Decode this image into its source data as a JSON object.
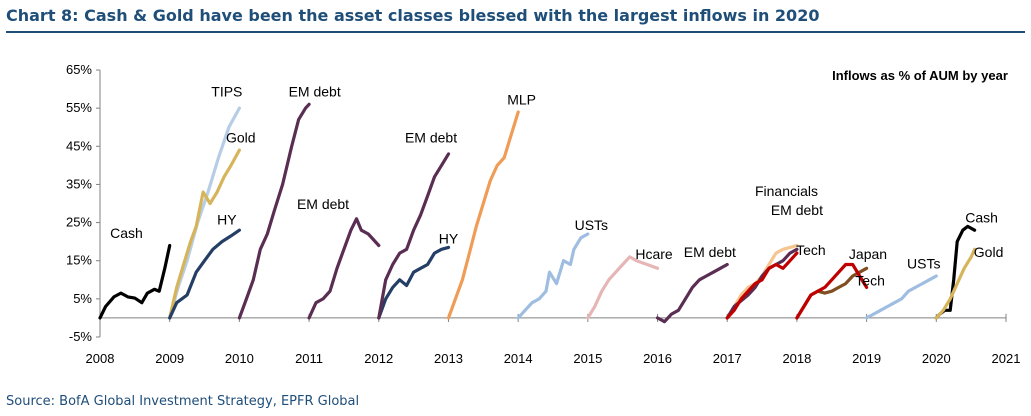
{
  "title": "Chart 8: Cash & Gold have been the asset classes blessed with the largest inflows in 2020",
  "source": "Source: BofA Global Investment Strategy, EPFR Global",
  "chart_data": {
    "type": "line",
    "title": "Chart 8: Cash & Gold have been the asset classes blessed with the largest inflows in 2020",
    "annotation": "Inflows as % of AUM by year",
    "xlim": [
      2008,
      2021
    ],
    "ylim": [
      -5,
      65
    ],
    "x_ticks": [
      "2008",
      "2009",
      "2010",
      "2011",
      "2012",
      "2013",
      "2014",
      "2015",
      "2016",
      "2017",
      "2018",
      "2019",
      "2020",
      "2021"
    ],
    "y_ticks": [
      "65%",
      "55%",
      "45%",
      "35%",
      "25%",
      "15%",
      "5%",
      "-5%"
    ],
    "grid": false,
    "legend": "none (series labelled directly)",
    "series": [
      {
        "name": "Cash",
        "color": "#000000",
        "points": [
          [
            2008.0,
            0
          ],
          [
            2008.08,
            3
          ],
          [
            2008.2,
            5.5
          ],
          [
            2008.3,
            6.5
          ],
          [
            2008.4,
            5.5
          ],
          [
            2008.5,
            5.2
          ],
          [
            2008.6,
            4
          ],
          [
            2008.68,
            6.5
          ],
          [
            2008.78,
            7.5
          ],
          [
            2008.85,
            7
          ],
          [
            2008.93,
            13
          ],
          [
            2009.0,
            19
          ]
        ]
      },
      {
        "name": "TIPS",
        "color": "#b7cde6",
        "points": [
          [
            2009.0,
            0
          ],
          [
            2009.12,
            8
          ],
          [
            2009.25,
            15
          ],
          [
            2009.4,
            25
          ],
          [
            2009.55,
            33
          ],
          [
            2009.7,
            42
          ],
          [
            2009.85,
            50
          ],
          [
            2010.0,
            55
          ]
        ]
      },
      {
        "name": "Gold",
        "color": "#d6b45a",
        "points": [
          [
            2009.0,
            0
          ],
          [
            2009.1,
            8
          ],
          [
            2009.2,
            14
          ],
          [
            2009.3,
            20
          ],
          [
            2009.38,
            24
          ],
          [
            2009.48,
            33
          ],
          [
            2009.58,
            30
          ],
          [
            2009.68,
            33
          ],
          [
            2009.78,
            37
          ],
          [
            2009.88,
            40
          ],
          [
            2010.0,
            44
          ]
        ]
      },
      {
        "name": "HY",
        "color": "#243e66",
        "points": [
          [
            2009.0,
            0
          ],
          [
            2009.1,
            4
          ],
          [
            2009.25,
            6
          ],
          [
            2009.38,
            12
          ],
          [
            2009.5,
            15
          ],
          [
            2009.62,
            18
          ],
          [
            2009.75,
            20
          ],
          [
            2009.88,
            21.5
          ],
          [
            2010.0,
            23
          ]
        ]
      },
      {
        "name": "EM debt",
        "color": "#5a2d52",
        "points": [
          [
            2010.0,
            0
          ],
          [
            2010.1,
            5
          ],
          [
            2010.2,
            10
          ],
          [
            2010.3,
            18
          ],
          [
            2010.4,
            22
          ],
          [
            2010.5,
            28
          ],
          [
            2010.62,
            35
          ],
          [
            2010.75,
            45
          ],
          [
            2010.85,
            52
          ],
          [
            2010.95,
            55
          ],
          [
            2011.0,
            56
          ]
        ]
      },
      {
        "name": "EM debt",
        "color": "#5a2d52",
        "points": [
          [
            2011.0,
            0
          ],
          [
            2011.1,
            4
          ],
          [
            2011.2,
            5
          ],
          [
            2011.3,
            7
          ],
          [
            2011.4,
            13
          ],
          [
            2011.5,
            18
          ],
          [
            2011.6,
            23
          ],
          [
            2011.68,
            26
          ],
          [
            2011.75,
            23
          ],
          [
            2011.85,
            22
          ],
          [
            2012.0,
            19
          ]
        ]
      },
      {
        "name": "HY",
        "color": "#243e66",
        "points": [
          [
            2012.0,
            0
          ],
          [
            2012.1,
            5
          ],
          [
            2012.2,
            8
          ],
          [
            2012.3,
            10
          ],
          [
            2012.4,
            8.5
          ],
          [
            2012.5,
            12
          ],
          [
            2012.6,
            13
          ],
          [
            2012.7,
            14
          ],
          [
            2012.8,
            17
          ],
          [
            2012.9,
            18
          ],
          [
            2013.0,
            18.5
          ]
        ]
      },
      {
        "name": "EM debt",
        "color": "#5a2d52",
        "points": [
          [
            2012.0,
            0
          ],
          [
            2012.1,
            10
          ],
          [
            2012.2,
            14
          ],
          [
            2012.3,
            17
          ],
          [
            2012.4,
            18
          ],
          [
            2012.5,
            23
          ],
          [
            2012.6,
            27
          ],
          [
            2012.7,
            32
          ],
          [
            2012.8,
            37
          ],
          [
            2012.9,
            40
          ],
          [
            2013.0,
            43
          ]
        ]
      },
      {
        "name": "MLP",
        "color": "#ef9c57",
        "points": [
          [
            2013.0,
            0
          ],
          [
            2013.1,
            5
          ],
          [
            2013.2,
            10
          ],
          [
            2013.3,
            17
          ],
          [
            2013.4,
            24
          ],
          [
            2013.5,
            30
          ],
          [
            2013.6,
            36
          ],
          [
            2013.7,
            40
          ],
          [
            2013.8,
            42
          ],
          [
            2013.9,
            48
          ],
          [
            2014.0,
            54
          ]
        ]
      },
      {
        "name": "USTs",
        "color": "#9fbde0",
        "points": [
          [
            2014.0,
            0
          ],
          [
            2014.1,
            2
          ],
          [
            2014.2,
            4
          ],
          [
            2014.3,
            5
          ],
          [
            2014.4,
            7
          ],
          [
            2014.45,
            12
          ],
          [
            2014.55,
            9
          ],
          [
            2014.65,
            15
          ],
          [
            2014.75,
            14
          ],
          [
            2014.8,
            18
          ],
          [
            2014.9,
            21
          ],
          [
            2015.0,
            22
          ]
        ]
      },
      {
        "name": "Hcare",
        "color": "#e6b6b6",
        "points": [
          [
            2015.0,
            0
          ],
          [
            2015.1,
            3
          ],
          [
            2015.2,
            7
          ],
          [
            2015.3,
            10
          ],
          [
            2015.4,
            12
          ],
          [
            2015.5,
            14
          ],
          [
            2015.6,
            16
          ],
          [
            2015.7,
            15
          ],
          [
            2015.85,
            14
          ],
          [
            2016.0,
            13
          ]
        ]
      },
      {
        "name": "EM debt",
        "color": "#5a2d52",
        "points": [
          [
            2016.0,
            0
          ],
          [
            2016.1,
            -1
          ],
          [
            2016.2,
            1
          ],
          [
            2016.3,
            2
          ],
          [
            2016.4,
            5
          ],
          [
            2016.5,
            8
          ],
          [
            2016.6,
            10
          ],
          [
            2016.7,
            11
          ],
          [
            2016.8,
            12
          ],
          [
            2016.9,
            13
          ],
          [
            2017.0,
            14
          ]
        ]
      },
      {
        "name": "Financials",
        "color": "#f7c58f",
        "points": [
          [
            2017.0,
            0
          ],
          [
            2017.1,
            3
          ],
          [
            2017.2,
            6
          ],
          [
            2017.3,
            8
          ],
          [
            2017.4,
            9
          ],
          [
            2017.5,
            11
          ],
          [
            2017.6,
            14
          ],
          [
            2017.7,
            17
          ],
          [
            2017.8,
            18
          ],
          [
            2017.9,
            18.5
          ],
          [
            2018.0,
            19
          ]
        ]
      },
      {
        "name": "EM debt",
        "color": "#5a2d52",
        "points": [
          [
            2017.0,
            0
          ],
          [
            2017.1,
            3
          ],
          [
            2017.2,
            4.5
          ],
          [
            2017.3,
            6
          ],
          [
            2017.4,
            8
          ],
          [
            2017.5,
            11
          ],
          [
            2017.6,
            13
          ],
          [
            2017.7,
            14
          ],
          [
            2017.8,
            15
          ],
          [
            2017.9,
            17
          ],
          [
            2018.0,
            18
          ]
        ]
      },
      {
        "name": "Tech",
        "color": "#c00000",
        "points": [
          [
            2017.0,
            0
          ],
          [
            2017.1,
            2
          ],
          [
            2017.2,
            5
          ],
          [
            2017.3,
            7
          ],
          [
            2017.4,
            9
          ],
          [
            2017.5,
            10
          ],
          [
            2017.6,
            13
          ],
          [
            2017.7,
            14
          ],
          [
            2017.8,
            13
          ],
          [
            2017.9,
            15
          ],
          [
            2018.0,
            17
          ]
        ]
      },
      {
        "name": "Japan",
        "color": "#7f4f21",
        "points": [
          [
            2018.0,
            0
          ],
          [
            2018.1,
            3
          ],
          [
            2018.2,
            6
          ],
          [
            2018.3,
            7
          ],
          [
            2018.4,
            6.5
          ],
          [
            2018.5,
            7
          ],
          [
            2018.6,
            8
          ],
          [
            2018.7,
            9
          ],
          [
            2018.8,
            11
          ],
          [
            2018.9,
            12
          ],
          [
            2019.0,
            13
          ]
        ]
      },
      {
        "name": "Tech",
        "color": "#c00000",
        "points": [
          [
            2018.0,
            0
          ],
          [
            2018.1,
            3
          ],
          [
            2018.2,
            6
          ],
          [
            2018.3,
            7
          ],
          [
            2018.4,
            8
          ],
          [
            2018.5,
            10
          ],
          [
            2018.6,
            12
          ],
          [
            2018.7,
            14
          ],
          [
            2018.8,
            14
          ],
          [
            2018.9,
            11
          ],
          [
            2019.0,
            8
          ]
        ]
      },
      {
        "name": "USTs",
        "color": "#9fbde0",
        "points": [
          [
            2019.0,
            0
          ],
          [
            2019.1,
            1
          ],
          [
            2019.2,
            2
          ],
          [
            2019.3,
            3
          ],
          [
            2019.4,
            4
          ],
          [
            2019.5,
            5
          ],
          [
            2019.6,
            7
          ],
          [
            2019.7,
            8
          ],
          [
            2019.8,
            9
          ],
          [
            2019.9,
            10
          ],
          [
            2020.0,
            11
          ]
        ]
      },
      {
        "name": "Cash",
        "color": "#000000",
        "points": [
          [
            2020.0,
            0
          ],
          [
            2020.05,
            1
          ],
          [
            2020.12,
            2
          ],
          [
            2020.2,
            2
          ],
          [
            2020.25,
            10
          ],
          [
            2020.3,
            20
          ],
          [
            2020.38,
            23
          ],
          [
            2020.45,
            24
          ],
          [
            2020.55,
            23
          ]
        ]
      },
      {
        "name": "Gold",
        "color": "#d6b45a",
        "points": [
          [
            2020.0,
            0
          ],
          [
            2020.1,
            2
          ],
          [
            2020.2,
            5
          ],
          [
            2020.3,
            9
          ],
          [
            2020.4,
            13
          ],
          [
            2020.5,
            16
          ],
          [
            2020.55,
            18
          ]
        ]
      }
    ],
    "labels": [
      {
        "text": "Cash",
        "x": 2008.38,
        "y": 21
      },
      {
        "text": "TIPS",
        "x": 2009.82,
        "y": 58
      },
      {
        "text": "Gold",
        "x": 2010.02,
        "y": 46
      },
      {
        "text": "HY",
        "x": 2009.82,
        "y": 24.5
      },
      {
        "text": "EM debt",
        "x": 2011.08,
        "y": 58
      },
      {
        "text": "EM debt",
        "x": 2011.2,
        "y": 28.5
      },
      {
        "text": "EM debt",
        "x": 2012.75,
        "y": 46
      },
      {
        "text": "HY",
        "x": 2013.0,
        "y": 19.5
      },
      {
        "text": "MLP",
        "x": 2014.05,
        "y": 56
      },
      {
        "text": "USTs",
        "x": 2015.05,
        "y": 23
      },
      {
        "text": "Hcare",
        "x": 2015.95,
        "y": 15.5
      },
      {
        "text": "EM debt",
        "x": 2016.75,
        "y": 16
      },
      {
        "text": "Financials",
        "x": 2017.85,
        "y": 32
      },
      {
        "text": "EM debt",
        "x": 2018.0,
        "y": 27
      },
      {
        "text": "Tech",
        "x": 2018.2,
        "y": 16.5
      },
      {
        "text": "Japan",
        "x": 2019.02,
        "y": 15.5
      },
      {
        "text": "Tech",
        "x": 2019.05,
        "y": 8.5
      },
      {
        "text": "USTs",
        "x": 2019.82,
        "y": 13
      },
      {
        "text": "Cash",
        "x": 2020.65,
        "y": 25
      },
      {
        "text": "Gold",
        "x": 2020.75,
        "y": 16
      }
    ]
  }
}
